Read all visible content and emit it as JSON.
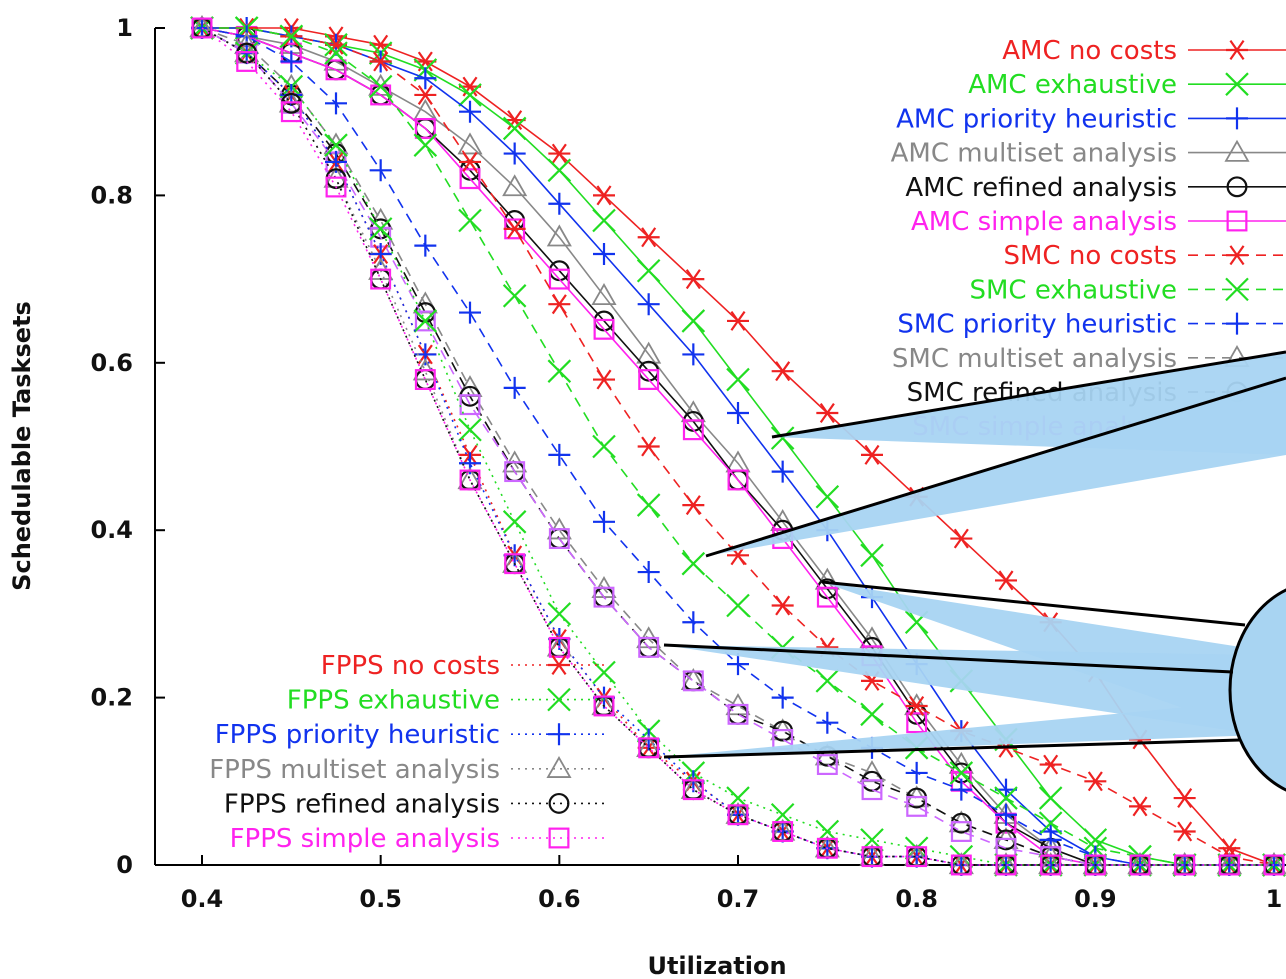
{
  "chart_data": {
    "type": "line",
    "title": "",
    "xlabel": "Utilization",
    "ylabel": "Schedulable Tasksets",
    "xlim": [
      0.4,
      1.0
    ],
    "ylim": [
      0,
      1.0
    ],
    "x_ticks": [
      0.4,
      0.5,
      0.6,
      0.7,
      0.8,
      0.9,
      1.0
    ],
    "x_tick_labels": [
      "0.4",
      "0.5",
      "0.6",
      "0.7",
      "0.8",
      "0.9",
      "1"
    ],
    "y_ticks": [
      0,
      0.2,
      0.4,
      0.6,
      0.8,
      1.0
    ],
    "y_tick_labels": [
      "0",
      "0.2",
      "0.4",
      "0.6",
      "0.8",
      "1"
    ],
    "grid": false,
    "x": [
      0.4,
      0.425,
      0.45,
      0.475,
      0.5,
      0.525,
      0.55,
      0.575,
      0.6,
      0.625,
      0.65,
      0.675,
      0.7,
      0.725,
      0.75,
      0.775,
      0.8,
      0.825,
      0.85,
      0.875,
      0.9,
      0.925,
      0.95,
      0.975,
      1.0
    ],
    "series": [
      {
        "name": "AMC no costs",
        "group": "AMC",
        "color": "#ee2222",
        "marker": "star",
        "dash": "solid",
        "values": [
          1.0,
          1.0,
          1.0,
          0.99,
          0.98,
          0.96,
          0.93,
          0.89,
          0.85,
          0.8,
          0.75,
          0.7,
          0.65,
          0.59,
          0.54,
          0.49,
          0.44,
          0.39,
          0.34,
          0.29,
          0.23,
          0.15,
          0.08,
          0.02,
          0.0
        ]
      },
      {
        "name": "AMC exhaustive",
        "group": "AMC",
        "color": "#22dd22",
        "marker": "x",
        "dash": "solid",
        "values": [
          1.0,
          1.0,
          0.99,
          0.98,
          0.97,
          0.95,
          0.92,
          0.88,
          0.83,
          0.77,
          0.71,
          0.65,
          0.58,
          0.51,
          0.44,
          0.37,
          0.29,
          0.22,
          0.15,
          0.08,
          0.03,
          0.01,
          0.0,
          0.0,
          0.0
        ]
      },
      {
        "name": "AMC priority heuristic",
        "group": "AMC",
        "color": "#1133ee",
        "marker": "plus",
        "dash": "solid",
        "values": [
          1.0,
          1.0,
          0.99,
          0.98,
          0.96,
          0.94,
          0.9,
          0.85,
          0.79,
          0.73,
          0.67,
          0.61,
          0.54,
          0.47,
          0.4,
          0.32,
          0.24,
          0.16,
          0.09,
          0.04,
          0.01,
          0.0,
          0.0,
          0.0,
          0.0
        ]
      },
      {
        "name": "AMC multiset analysis",
        "group": "AMC",
        "color": "#888888",
        "marker": "triangle",
        "dash": "solid",
        "values": [
          1.0,
          0.99,
          0.98,
          0.96,
          0.93,
          0.9,
          0.86,
          0.81,
          0.75,
          0.68,
          0.61,
          0.54,
          0.48,
          0.41,
          0.34,
          0.27,
          0.19,
          0.12,
          0.06,
          0.02,
          0.0,
          0.0,
          0.0,
          0.0,
          0.0
        ]
      },
      {
        "name": "AMC refined analysis",
        "group": "AMC",
        "color": "#111111",
        "marker": "circle",
        "dash": "solid",
        "values": [
          1.0,
          0.99,
          0.97,
          0.95,
          0.92,
          0.88,
          0.83,
          0.77,
          0.71,
          0.65,
          0.59,
          0.53,
          0.46,
          0.4,
          0.33,
          0.26,
          0.18,
          0.11,
          0.05,
          0.02,
          0.0,
          0.0,
          0.0,
          0.0,
          0.0
        ]
      },
      {
        "name": "AMC simple analysis",
        "group": "AMC",
        "color": "#ff22ee",
        "marker": "square",
        "dash": "solid",
        "values": [
          1.0,
          0.99,
          0.97,
          0.95,
          0.92,
          0.88,
          0.82,
          0.76,
          0.7,
          0.64,
          0.58,
          0.52,
          0.46,
          0.39,
          0.32,
          0.25,
          0.17,
          0.1,
          0.05,
          0.01,
          0.0,
          0.0,
          0.0,
          0.0,
          0.0
        ]
      },
      {
        "name": "SMC no costs",
        "group": "SMC",
        "color": "#ee2222",
        "marker": "star",
        "dash": "dashed",
        "values": [
          1.0,
          1.0,
          0.99,
          0.98,
          0.96,
          0.92,
          0.84,
          0.76,
          0.67,
          0.58,
          0.5,
          0.43,
          0.37,
          0.31,
          0.26,
          0.22,
          0.19,
          0.16,
          0.14,
          0.12,
          0.1,
          0.07,
          0.04,
          0.01,
          0.0
        ]
      },
      {
        "name": "SMC exhaustive",
        "group": "SMC",
        "color": "#22dd22",
        "marker": "x",
        "dash": "dashed",
        "values": [
          1.0,
          1.0,
          0.99,
          0.97,
          0.93,
          0.86,
          0.77,
          0.68,
          0.59,
          0.5,
          0.43,
          0.36,
          0.31,
          0.26,
          0.22,
          0.18,
          0.14,
          0.11,
          0.08,
          0.05,
          0.02,
          0.01,
          0.0,
          0.0,
          0.0
        ]
      },
      {
        "name": "SMC priority heuristic",
        "group": "SMC",
        "color": "#1133ee",
        "marker": "plus",
        "dash": "dashed",
        "values": [
          1.0,
          0.99,
          0.96,
          0.91,
          0.83,
          0.74,
          0.66,
          0.57,
          0.49,
          0.41,
          0.35,
          0.29,
          0.24,
          0.2,
          0.17,
          0.14,
          0.11,
          0.09,
          0.06,
          0.03,
          0.01,
          0.0,
          0.0,
          0.0,
          0.0
        ]
      },
      {
        "name": "SMC multiset analysis",
        "group": "SMC",
        "color": "#888888",
        "marker": "triangle",
        "dash": "dashed",
        "values": [
          1.0,
          0.98,
          0.93,
          0.86,
          0.77,
          0.67,
          0.57,
          0.48,
          0.4,
          0.33,
          0.27,
          0.22,
          0.19,
          0.16,
          0.13,
          0.11,
          0.08,
          0.05,
          0.03,
          0.01,
          0.0,
          0.0,
          0.0,
          0.0,
          0.0
        ]
      },
      {
        "name": "SMC refined analysis",
        "group": "SMC",
        "color": "#111111",
        "marker": "circle",
        "dash": "dashed",
        "values": [
          1.0,
          0.97,
          0.92,
          0.85,
          0.76,
          0.66,
          0.56,
          0.47,
          0.39,
          0.32,
          0.26,
          0.22,
          0.18,
          0.16,
          0.13,
          0.1,
          0.08,
          0.05,
          0.03,
          0.01,
          0.0,
          0.0,
          0.0,
          0.0,
          0.0
        ]
      },
      {
        "name": "SMC simple analysis",
        "group": "SMC",
        "color": "#cc66ff",
        "marker": "square",
        "dash": "dashed",
        "values": [
          1.0,
          0.97,
          0.91,
          0.84,
          0.75,
          0.65,
          0.55,
          0.47,
          0.39,
          0.32,
          0.26,
          0.22,
          0.18,
          0.15,
          0.12,
          0.09,
          0.07,
          0.04,
          0.02,
          0.01,
          0.0,
          0.0,
          0.0,
          0.0,
          0.0
        ]
      },
      {
        "name": "FPPS no costs",
        "group": "FPPS",
        "color": "#ee2222",
        "marker": "star",
        "dash": "dotted",
        "values": [
          1.0,
          0.97,
          0.92,
          0.84,
          0.73,
          0.61,
          0.49,
          0.37,
          0.27,
          0.2,
          0.14,
          0.1,
          0.06,
          0.04,
          0.02,
          0.01,
          0.01,
          0.0,
          0.0,
          0.0,
          0.0,
          0.0,
          0.0,
          0.0,
          0.0
        ]
      },
      {
        "name": "FPPS exhaustive",
        "group": "FPPS",
        "color": "#22dd22",
        "marker": "x",
        "dash": "dotted",
        "values": [
          1.0,
          0.97,
          0.93,
          0.86,
          0.76,
          0.65,
          0.52,
          0.41,
          0.3,
          0.23,
          0.16,
          0.11,
          0.08,
          0.06,
          0.04,
          0.03,
          0.02,
          0.01,
          0.0,
          0.0,
          0.0,
          0.0,
          0.0,
          0.0,
          0.0
        ]
      },
      {
        "name": "FPPS priority heuristic",
        "group": "FPPS",
        "color": "#1133ee",
        "marker": "plus",
        "dash": "dotted",
        "values": [
          1.0,
          0.97,
          0.92,
          0.84,
          0.73,
          0.61,
          0.48,
          0.37,
          0.27,
          0.2,
          0.15,
          0.1,
          0.06,
          0.04,
          0.02,
          0.01,
          0.01,
          0.0,
          0.0,
          0.0,
          0.0,
          0.0,
          0.0,
          0.0,
          0.0
        ]
      },
      {
        "name": "FPPS multiset analysis",
        "group": "FPPS",
        "color": "#888888",
        "marker": "triangle",
        "dash": "dotted",
        "values": [
          1.0,
          0.97,
          0.91,
          0.82,
          0.71,
          0.59,
          0.46,
          0.36,
          0.26,
          0.19,
          0.14,
          0.09,
          0.06,
          0.04,
          0.02,
          0.01,
          0.01,
          0.0,
          0.0,
          0.0,
          0.0,
          0.0,
          0.0,
          0.0,
          0.0
        ]
      },
      {
        "name": "FPPS refined analysis",
        "group": "FPPS",
        "color": "#111111",
        "marker": "circle",
        "dash": "dotted",
        "values": [
          1.0,
          0.97,
          0.91,
          0.82,
          0.7,
          0.58,
          0.46,
          0.36,
          0.26,
          0.19,
          0.14,
          0.09,
          0.06,
          0.04,
          0.02,
          0.01,
          0.01,
          0.0,
          0.0,
          0.0,
          0.0,
          0.0,
          0.0,
          0.0,
          0.0
        ]
      },
      {
        "name": "FPPS simple analysis",
        "group": "FPPS",
        "color": "#ff22ee",
        "marker": "square",
        "dash": "dotted",
        "values": [
          1.0,
          0.96,
          0.9,
          0.81,
          0.7,
          0.58,
          0.46,
          0.36,
          0.26,
          0.19,
          0.14,
          0.09,
          0.06,
          0.04,
          0.02,
          0.01,
          0.01,
          0.0,
          0.0,
          0.0,
          0.0,
          0.0,
          0.0,
          0.0,
          0.0
        ]
      }
    ],
    "legend": [
      {
        "placement": "top-right",
        "groups": [
          "AMC",
          "SMC"
        ]
      },
      {
        "placement": "bottom-left",
        "groups": [
          "FPPS"
        ]
      }
    ],
    "callouts": {
      "fill": "#a8d4f2",
      "stroke": "#000000"
    }
  }
}
